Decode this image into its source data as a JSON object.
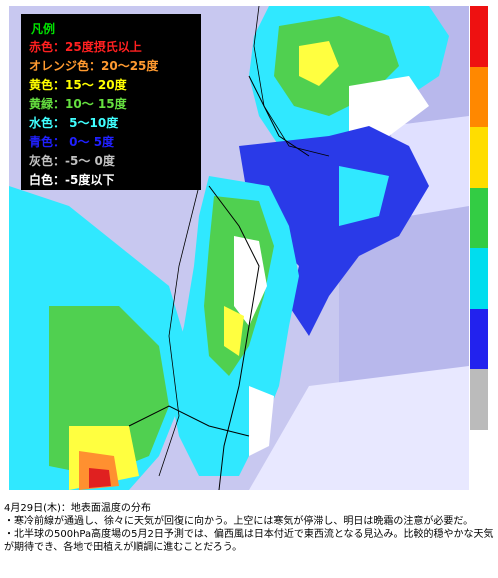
{
  "legend": {
    "title": "凡例",
    "items": [
      {
        "text": "赤色：25度摂氏以上",
        "color": "#ff2020"
      },
      {
        "text": "オレンジ色：20〜25度",
        "color": "#ff9a30"
      },
      {
        "text": "黄色：15〜 20度",
        "color": "#ffff00"
      },
      {
        "text": "黄緑：10〜 15度",
        "color": "#66e040"
      },
      {
        "text": "水色： 5〜10度",
        "color": "#40ffff"
      },
      {
        "text": "青色： 0〜  5度",
        "color": "#2020ff"
      },
      {
        "text": "灰色：-5〜  0度",
        "color": "#c0c0c0"
      },
      {
        "text": "白色：-5度以下",
        "color": "#ffffff"
      }
    ]
  },
  "colorbar": [
    "#ee1111",
    "#ff8800",
    "#ffdd00",
    "#33cc44",
    "#00ddee",
    "#2222ee",
    "#bbbbbb",
    "#ffffff"
  ],
  "caption": {
    "title": "4月29日(木)：地表面温度の分布",
    "line1": "・寒冷前線が通過し、徐々に天気が回復に向かう。上空には寒気が停滞し、明日は晩霜の注意が必要だ。",
    "line2": "・北半球の500hPa高度場の5月2日予測では、偏西風は日本付近で東西流となる見込み。比較的穏やかな天気が期待でき、各地で田植えが順調に進むことだろう。"
  },
  "colors": {
    "sea": "#c8c8f0",
    "cloud_blue": "#2a3ae8",
    "cyan": "#30e8ff",
    "green": "#50d050",
    "yellow": "#ffff40",
    "orange": "#ff9030",
    "red": "#e02020",
    "boundary": "#000000"
  }
}
